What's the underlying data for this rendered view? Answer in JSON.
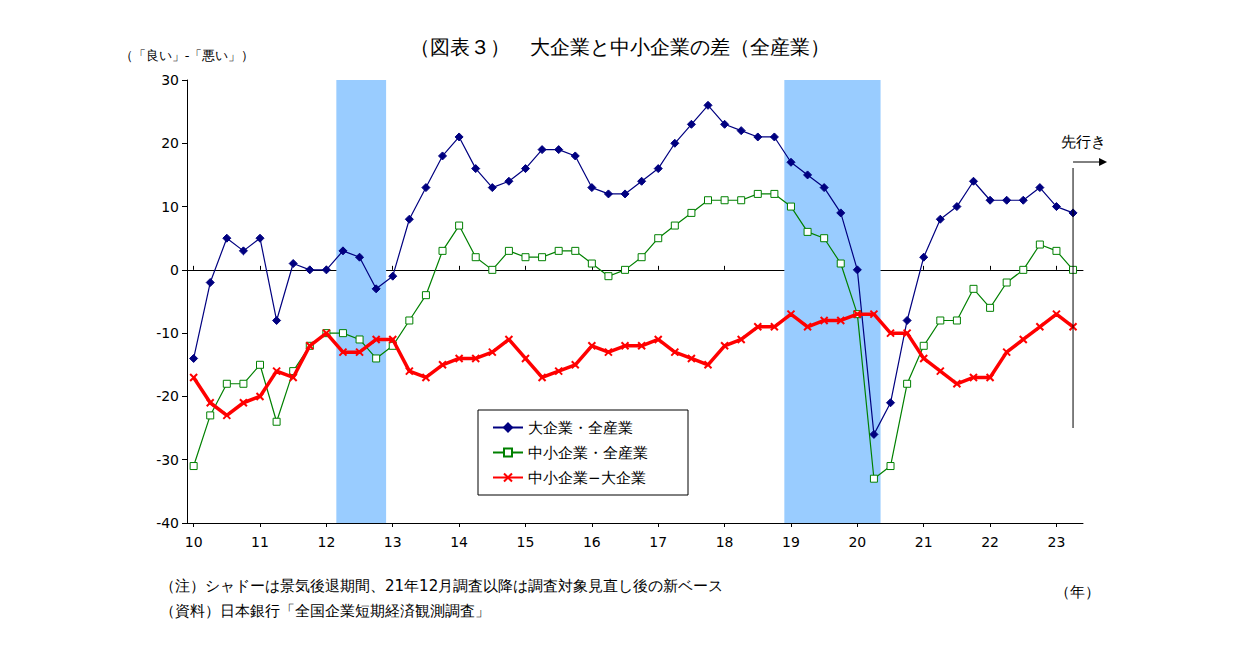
{
  "chart_data": {
    "type": "line",
    "title": "（図表３）　大企業と中小企業の差（全産業）",
    "y_label": "（「良い」-「悪い」）",
    "x_label": "（年）",
    "notes": [
      "（注）シャドーは景気後退期間、21年12月調査以降は調査対象見直し後の新ベース",
      "（資料）日本銀行「全国企業短期経済観測調査」"
    ],
    "forecast_label": "先行き",
    "forecast_x": 2023.25,
    "shaded_periods": [
      [
        2012.15,
        2012.9
      ],
      [
        2018.9,
        2020.35
      ]
    ],
    "x": [
      2010,
      2010.25,
      2010.5,
      2010.75,
      2011,
      2011.25,
      2011.5,
      2011.75,
      2012,
      2012.25,
      2012.5,
      2012.75,
      2013,
      2013.25,
      2013.5,
      2013.75,
      2014,
      2014.25,
      2014.5,
      2014.75,
      2015,
      2015.25,
      2015.5,
      2015.75,
      2016,
      2016.25,
      2016.5,
      2016.75,
      2017,
      2017.25,
      2017.5,
      2017.75,
      2018,
      2018.25,
      2018.5,
      2018.75,
      2019,
      2019.25,
      2019.5,
      2019.75,
      2020,
      2020.25,
      2020.5,
      2020.75,
      2021,
      2021.25,
      2021.5,
      2021.75,
      2022,
      2022.25,
      2022.5,
      2022.75,
      2023,
      2023.25
    ],
    "series": [
      {
        "name": "大企業・全産業",
        "color": "#000080",
        "marker": "diamond",
        "line_style": "solid",
        "values": [
          -14,
          -2,
          5,
          3,
          5,
          -8,
          1,
          0,
          0,
          3,
          2,
          -3,
          -1,
          8,
          13,
          18,
          21,
          16,
          13,
          14,
          16,
          19,
          19,
          18,
          13,
          12,
          12,
          14,
          16,
          20,
          23,
          26,
          23,
          22,
          21,
          21,
          17,
          15,
          13,
          9,
          0,
          -26,
          -21,
          -8,
          2,
          8,
          10,
          14,
          11,
          11,
          11,
          13,
          10,
          9
        ]
      },
      {
        "name": "中小企業・全産業",
        "color": "#008000",
        "marker": "open_square",
        "line_style": "solid",
        "values": [
          -31,
          -23,
          -18,
          -18,
          -15,
          -24,
          -16,
          -12,
          -10,
          -10,
          -11,
          -14,
          -12,
          -8,
          -4,
          3,
          7,
          2,
          0,
          3,
          2,
          2,
          3,
          3,
          1,
          -1,
          0,
          2,
          5,
          7,
          9,
          11,
          11,
          11,
          12,
          12,
          10,
          6,
          5,
          1,
          -7,
          -33,
          -31,
          -18,
          -12,
          -8,
          -8,
          -3,
          -6,
          -2,
          0,
          4,
          3,
          0
        ]
      },
      {
        "name": "中小企業−大企業",
        "color": "#ff0000",
        "marker": "x",
        "line_style": "solid",
        "values": [
          -17,
          -21,
          -23,
          -21,
          -20,
          -16,
          -17,
          -12,
          -10,
          -13,
          -13,
          -11,
          -11,
          -16,
          -17,
          -15,
          -14,
          -14,
          -13,
          -11,
          -14,
          -17,
          -16,
          -15,
          -12,
          -13,
          -12,
          -12,
          -11,
          -13,
          -14,
          -15,
          -12,
          -11,
          -9,
          -9,
          -7,
          -9,
          -8,
          -8,
          -7,
          -7,
          -10,
          -10,
          -14,
          -16,
          -18,
          -17,
          -17,
          -13,
          -11,
          -9,
          -7,
          -9
        ]
      }
    ],
    "xlim": [
      2009.9,
      2023.4
    ],
    "xticks": [
      {
        "value": 2010,
        "label": "10"
      },
      {
        "value": 2011,
        "label": "11"
      },
      {
        "value": 2012,
        "label": "12"
      },
      {
        "value": 2013,
        "label": "13"
      },
      {
        "value": 2014,
        "label": "14"
      },
      {
        "value": 2015,
        "label": "15"
      },
      {
        "value": 2016,
        "label": "16"
      },
      {
        "value": 2017,
        "label": "17"
      },
      {
        "value": 2018,
        "label": "18"
      },
      {
        "value": 2019,
        "label": "19"
      },
      {
        "value": 2020,
        "label": "20"
      },
      {
        "value": 2021,
        "label": "21"
      },
      {
        "value": 2022,
        "label": "22"
      },
      {
        "value": 2023,
        "label": "23"
      }
    ],
    "ylim": [
      -40,
      30
    ],
    "yticks": [
      -40,
      -30,
      -20,
      -10,
      0,
      10,
      20,
      30
    ],
    "grid": false,
    "legend": "lower center"
  }
}
